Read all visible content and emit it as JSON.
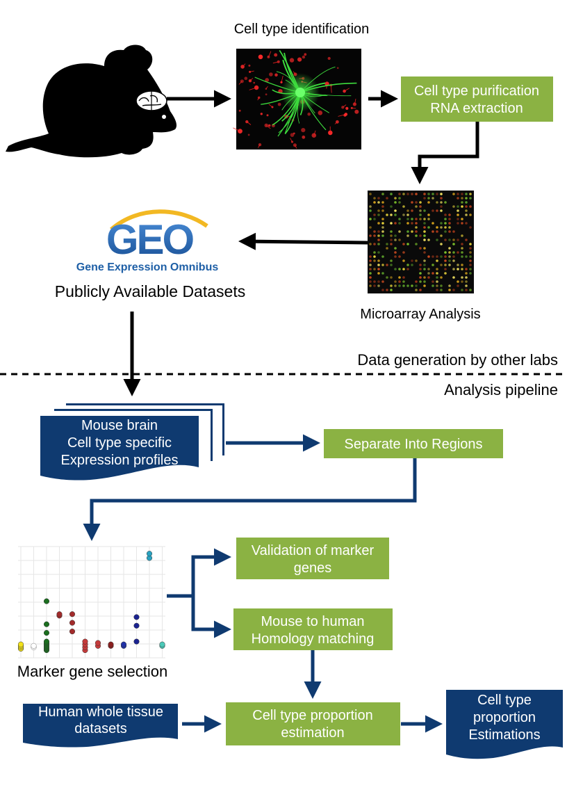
{
  "labels": {
    "cell_type_identification": "Cell type identification",
    "publicly_available": "Publicly Available Datasets",
    "microarray_analysis": "Microarray Analysis",
    "data_generation": "Data generation by other labs",
    "analysis_pipeline": "Analysis pipeline",
    "marker_gene_selection": "Marker gene selection"
  },
  "geo_logo": {
    "letters": "GEO",
    "subtitle": "Gene Expression Omnibus"
  },
  "boxes": {
    "purification": [
      "Cell type purification",
      "RNA extraction"
    ],
    "separate_regions": [
      "Separate Into Regions"
    ],
    "validation": [
      "Validation of marker",
      "genes"
    ],
    "homology": [
      "Mouse to human",
      "Homology matching"
    ],
    "proportion_estimation": [
      "Cell type proportion",
      "estimation"
    ]
  },
  "documents": {
    "mouse_profiles": [
      "Mouse brain",
      "Cell type specific",
      "Expression profiles"
    ],
    "human_tissue": [
      "Human whole tissue",
      "datasets"
    ],
    "estimations": [
      "Cell type",
      "proportion",
      "Estimations"
    ]
  },
  "colors": {
    "green_box": "#8BB243",
    "navy_doc": "#0F3A70",
    "navy_arrow": "#0F3A70",
    "black_arrow": "#000000",
    "geo_blue": "#1E5FA6",
    "geo_gold": "#F2B823"
  },
  "scatter_groups": [
    {
      "color": "#F2E21B",
      "values": [
        1,
        2,
        3,
        4
      ]
    },
    {
      "color": "#FFFFFF",
      "values": [
        2,
        3
      ]
    },
    {
      "color": "#1B6E1F",
      "values": [
        0,
        1,
        2,
        3,
        4,
        5,
        6,
        12,
        18,
        34
      ]
    },
    {
      "color": "#A22B2B",
      "values": [
        24,
        25
      ]
    },
    {
      "color": "#A22B2B",
      "values": [
        13,
        19,
        25
      ]
    },
    {
      "color": "#C53B3B",
      "values": [
        0,
        2,
        4,
        6
      ]
    },
    {
      "color": "#C53B3B",
      "values": [
        3,
        5
      ]
    },
    {
      "color": "#8B1F1F",
      "values": [
        3,
        4
      ]
    },
    {
      "color": "#2233A8",
      "values": [
        3,
        4
      ]
    },
    {
      "color": "#1B2390",
      "values": [
        6,
        17,
        23
      ]
    },
    {
      "color": "#2AA2C0",
      "values": [
        64,
        67
      ]
    },
    {
      "color": "#4BC9B8",
      "values": [
        3,
        4
      ]
    }
  ]
}
